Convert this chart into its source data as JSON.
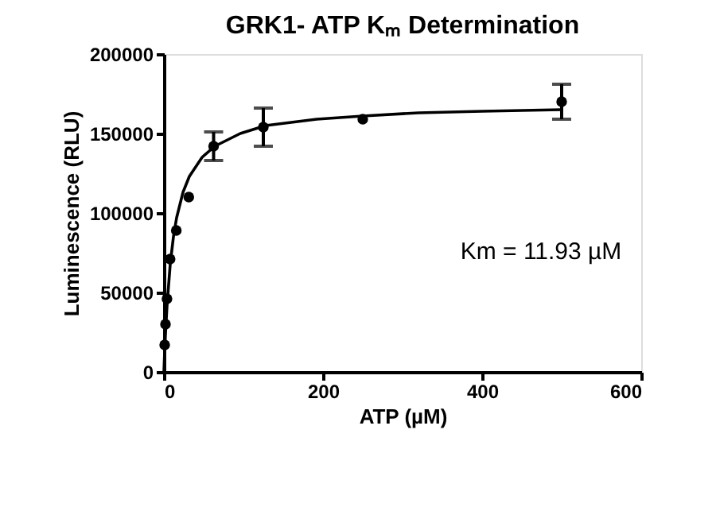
{
  "chart_data": {
    "type": "scatter",
    "title": "GRK1- ATP Kₘ Determination",
    "xlabel": "ATP (µM)",
    "ylabel": "Luminescence (RLU)",
    "xlim": [
      0,
      600
    ],
    "xticks": [
      0,
      200,
      400,
      600
    ],
    "ylim": [
      0,
      200000
    ],
    "yticks": [
      0,
      50000,
      100000,
      150000,
      200000
    ],
    "grid": false,
    "annotations": [
      "Km = 11.93 µM"
    ],
    "series": [
      {
        "color": "#000000",
        "marker": "circle",
        "x": [
          1.0,
          2.0,
          3.9,
          7.8,
          15.6,
          31.3,
          62.5,
          125,
          250,
          500
        ],
        "values": [
          17000,
          30000,
          46000,
          71000,
          89000,
          110000,
          142000,
          154000,
          159000,
          170000
        ],
        "errors": [
          null,
          null,
          null,
          null,
          null,
          null,
          9000,
          12000,
          null,
          11000
        ]
      },
      {
        "type": "line",
        "color": "#000000",
        "line_style": "solid",
        "x": [
          0,
          1,
          2,
          4,
          8,
          12,
          16,
          24,
          32,
          48,
          64,
          96,
          128,
          192,
          250,
          320,
          400,
          500
        ],
        "values": [
          0,
          13000,
          24000,
          42000,
          68000,
          85000,
          97000,
          113000,
          123000,
          135000,
          142000,
          150000,
          155000,
          159000,
          161000,
          163000,
          164000,
          165000
        ]
      }
    ]
  }
}
